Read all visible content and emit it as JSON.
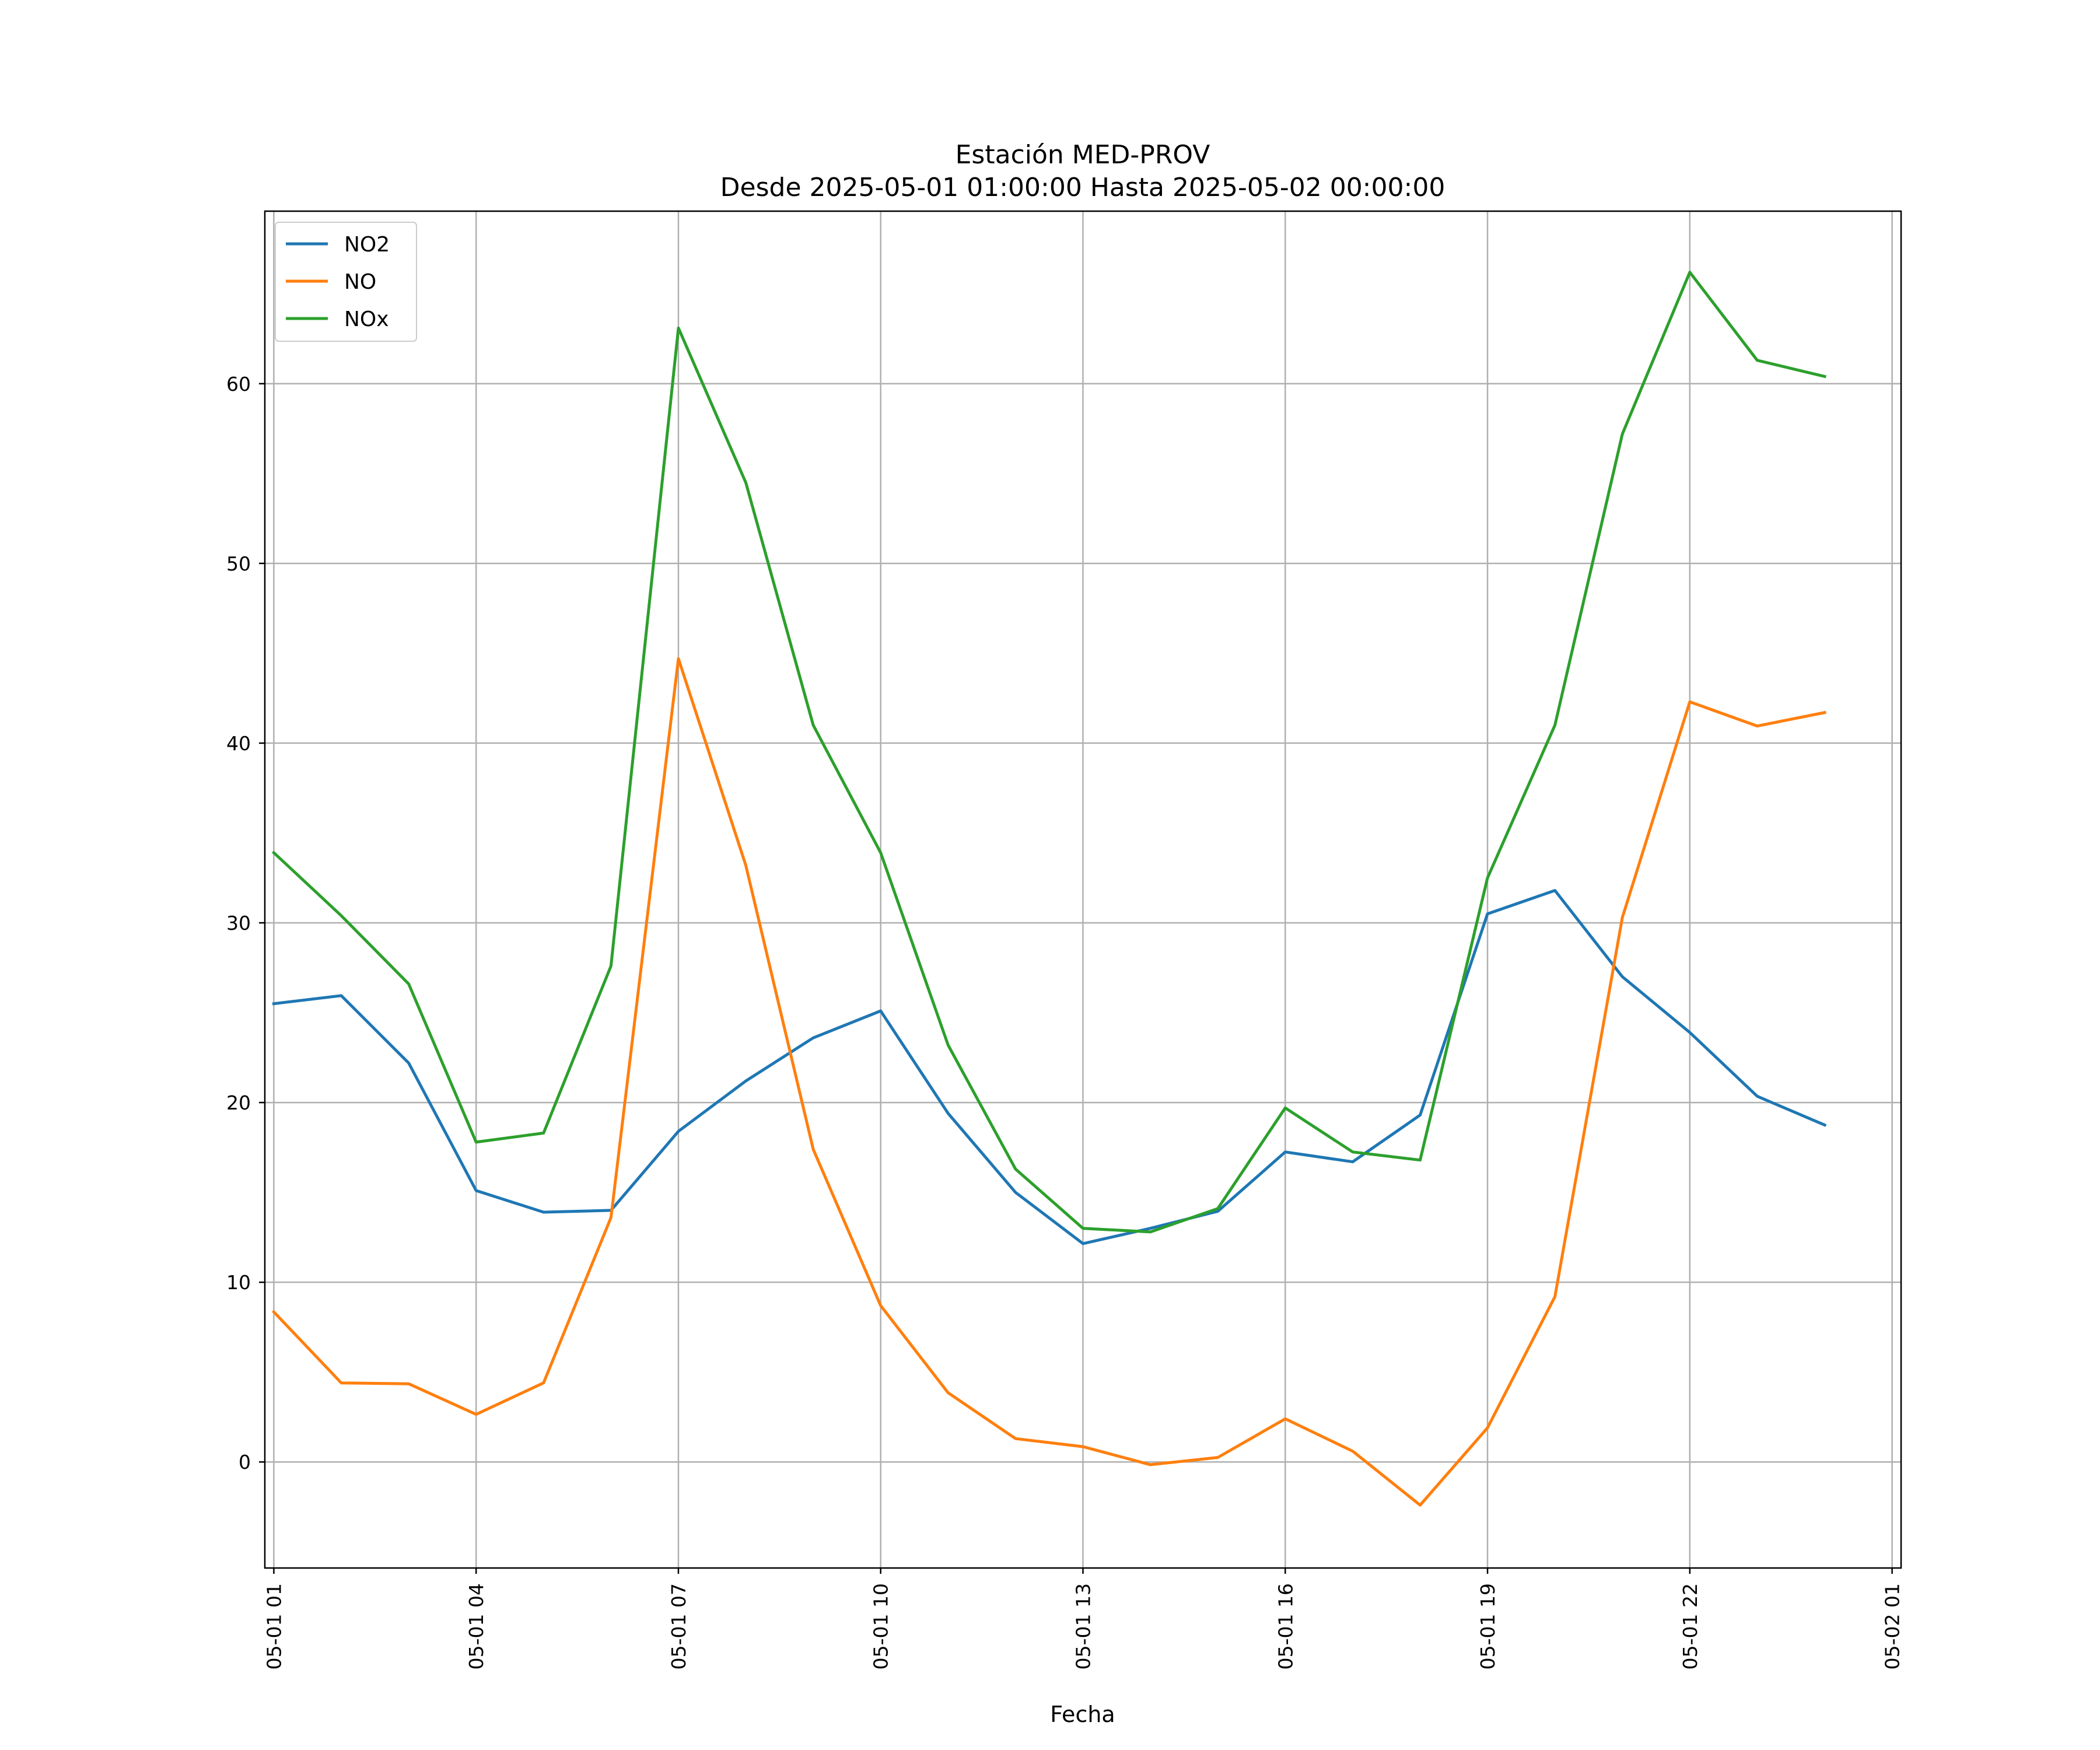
{
  "chart_data": {
    "type": "line",
    "title": "Estación MED-PROV",
    "subtitle": "Desde 2025-05-01 01:00:00 Hasta 2025-05-02 00:00:00",
    "xlabel": "Fecha",
    "ylabel": "",
    "x": [
      "2025-05-01 01:00",
      "2025-05-01 02:00",
      "2025-05-01 03:00",
      "2025-05-01 04:00",
      "2025-05-01 05:00",
      "2025-05-01 06:00",
      "2025-05-01 07:00",
      "2025-05-01 08:00",
      "2025-05-01 09:00",
      "2025-05-01 10:00",
      "2025-05-01 11:00",
      "2025-05-01 12:00",
      "2025-05-01 13:00",
      "2025-05-01 14:00",
      "2025-05-01 15:00",
      "2025-05-01 16:00",
      "2025-05-01 17:00",
      "2025-05-01 18:00",
      "2025-05-01 19:00",
      "2025-05-01 20:00",
      "2025-05-01 21:00",
      "2025-05-01 22:00",
      "2025-05-01 23:00",
      "2025-05-02 00:00"
    ],
    "xlim": [
      "2025-04-30 23:52",
      "2025-05-02 01:08"
    ],
    "ylim": [
      -5.9,
      69.6
    ],
    "x_ticks": [
      "05-01 01",
      "05-01 04",
      "05-01 07",
      "05-01 10",
      "05-01 13",
      "05-01 16",
      "05-01 19",
      "05-01 22",
      "05-02 01"
    ],
    "x_tick_hours": [
      0,
      3,
      6,
      9,
      12,
      15,
      18,
      21,
      24
    ],
    "y_ticks": [
      0,
      10,
      20,
      30,
      40,
      50,
      60
    ],
    "grid": true,
    "legend_position": "top-left",
    "series": [
      {
        "name": "NO2",
        "color": "#1f77b4",
        "values": [
          25.5,
          25.95,
          22.2,
          15.1,
          13.9,
          14.0,
          18.4,
          21.2,
          23.6,
          25.1,
          19.4,
          15.0,
          12.15,
          13.0,
          13.95,
          17.25,
          16.7,
          19.3,
          30.5,
          31.8,
          27.0,
          23.9,
          20.35,
          18.75
        ]
      },
      {
        "name": "NO",
        "color": "#ff7f0e",
        "values": [
          8.35,
          4.4,
          4.35,
          2.65,
          4.4,
          13.6,
          44.7,
          33.2,
          17.4,
          8.7,
          3.85,
          1.3,
          0.85,
          -0.15,
          0.25,
          2.4,
          0.6,
          -2.4,
          1.9,
          9.2,
          30.3,
          42.3,
          40.95,
          41.7
        ]
      },
      {
        "name": "NOx",
        "color": "#2ca02c",
        "values": [
          33.9,
          30.4,
          26.6,
          17.8,
          18.3,
          27.6,
          63.1,
          54.5,
          41.0,
          33.9,
          23.2,
          16.3,
          13.0,
          12.8,
          14.1,
          19.7,
          17.25,
          16.8,
          32.5,
          41.0,
          57.2,
          66.2,
          61.3,
          60.4
        ]
      }
    ]
  }
}
